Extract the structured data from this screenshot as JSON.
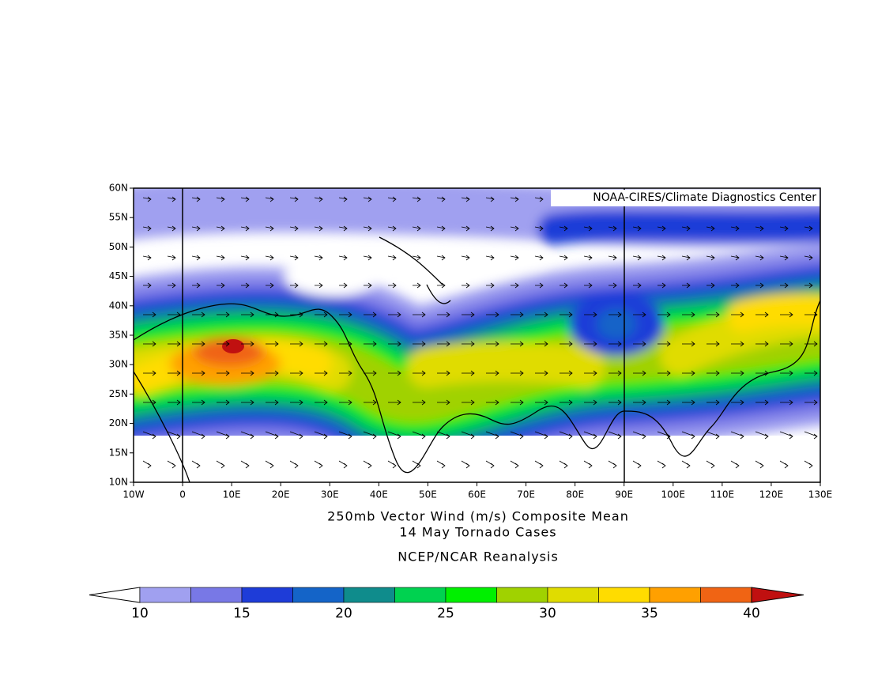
{
  "map": {
    "credit": "NOAA-CIRES/Climate Diagnostics Center",
    "lon_ticks": [
      "10W",
      "0",
      "10E",
      "20E",
      "30E",
      "40E",
      "50E",
      "60E",
      "70E",
      "80E",
      "90E",
      "100E",
      "110E",
      "120E",
      "130E"
    ],
    "lat_ticks": [
      "60N",
      "55N",
      "50N",
      "45N",
      "40N",
      "35N",
      "30N",
      "25N",
      "20N",
      "15N",
      "10N"
    ],
    "title": [
      "250mb Vector Wind (m/s) Composite Mean",
      "14 May Tornado Cases"
    ],
    "source": "NCEP/NCAR Reanalysis",
    "colorbar": {
      "levels": [
        10,
        12.5,
        15,
        17.5,
        20,
        22.5,
        25,
        27.5,
        30,
        32.5,
        35,
        37.5,
        40
      ],
      "colors": [
        "#a0a0f0",
        "#7878e6",
        "#1e3cd8",
        "#1464c8",
        "#0f8c8c",
        "#00d250",
        "#00f000",
        "#a0d200",
        "#e0dc00",
        "#ffdc00",
        "#ffa000",
        "#f06414"
      ],
      "under_color": "#ffffff",
      "over_color": "#c01010",
      "labels": [
        10,
        15,
        20,
        25,
        30,
        35,
        40
      ]
    }
  }
}
